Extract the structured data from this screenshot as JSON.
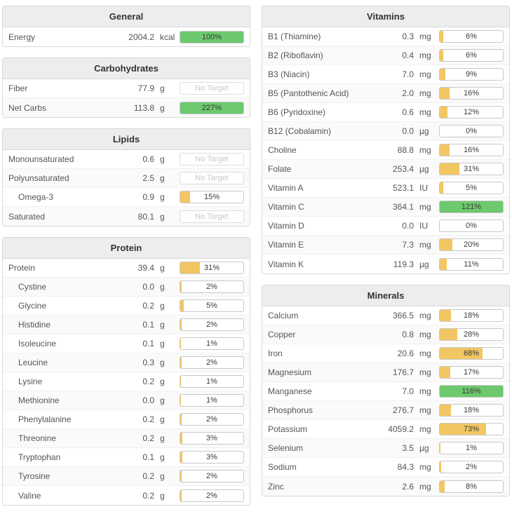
{
  "labels": {
    "no_target": "No Target"
  },
  "colors": {
    "fill_yellow": "#F2C662",
    "fill_green": "#6DC96E",
    "header_bg": "#EDEDED",
    "border": "#D9D9D9"
  },
  "panels": [
    {
      "title": "General",
      "column": "left",
      "rows": [
        {
          "label": "Energy",
          "value": "2004.2",
          "unit": "kcal",
          "percent": 100
        }
      ]
    },
    {
      "title": "Carbohydrates",
      "column": "left",
      "rows": [
        {
          "label": "Fiber",
          "value": "77.9",
          "unit": "g",
          "no_target": true
        },
        {
          "label": "Net Carbs",
          "value": "113.8",
          "unit": "g",
          "percent": 227
        }
      ]
    },
    {
      "title": "Lipids",
      "column": "left",
      "rows": [
        {
          "label": "Monounsaturated",
          "value": "0.6",
          "unit": "g",
          "no_target": true
        },
        {
          "label": "Polyunsaturated",
          "value": "2.5",
          "unit": "g",
          "no_target": true
        },
        {
          "label": "Omega-3",
          "value": "0.9",
          "unit": "g",
          "percent": 15,
          "indent": true
        },
        {
          "label": "Saturated",
          "value": "80.1",
          "unit": "g",
          "no_target": true
        }
      ]
    },
    {
      "title": "Protein",
      "column": "left",
      "rows": [
        {
          "label": "Protein",
          "value": "39.4",
          "unit": "g",
          "percent": 31
        },
        {
          "label": "Cystine",
          "value": "0.0",
          "unit": "g",
          "percent": 2,
          "indent": true
        },
        {
          "label": "Glycine",
          "value": "0.2",
          "unit": "g",
          "percent": 5,
          "indent": true
        },
        {
          "label": "Histidine",
          "value": "0.1",
          "unit": "g",
          "percent": 2,
          "indent": true
        },
        {
          "label": "Isoleucine",
          "value": "0.1",
          "unit": "g",
          "percent": 1,
          "indent": true
        },
        {
          "label": "Leucine",
          "value": "0.3",
          "unit": "g",
          "percent": 2,
          "indent": true
        },
        {
          "label": "Lysine",
          "value": "0.2",
          "unit": "g",
          "percent": 1,
          "indent": true
        },
        {
          "label": "Methionine",
          "value": "0.0",
          "unit": "g",
          "percent": 1,
          "indent": true
        },
        {
          "label": "Phenylalanine",
          "value": "0.2",
          "unit": "g",
          "percent": 2,
          "indent": true
        },
        {
          "label": "Threonine",
          "value": "0.2",
          "unit": "g",
          "percent": 3,
          "indent": true
        },
        {
          "label": "Tryptophan",
          "value": "0.1",
          "unit": "g",
          "percent": 3,
          "indent": true
        },
        {
          "label": "Tyrosine",
          "value": "0.2",
          "unit": "g",
          "percent": 2,
          "indent": true
        },
        {
          "label": "Valine",
          "value": "0.2",
          "unit": "g",
          "percent": 2,
          "indent": true
        }
      ]
    },
    {
      "title": "Vitamins",
      "column": "right",
      "rows": [
        {
          "label": "B1 (Thiamine)",
          "value": "0.3",
          "unit": "mg",
          "percent": 6
        },
        {
          "label": "B2 (Riboflavin)",
          "value": "0.4",
          "unit": "mg",
          "percent": 6
        },
        {
          "label": "B3 (Niacin)",
          "value": "7.0",
          "unit": "mg",
          "percent": 9
        },
        {
          "label": "B5 (Pantothenic Acid)",
          "value": "2.0",
          "unit": "mg",
          "percent": 16
        },
        {
          "label": "B6 (Pyridoxine)",
          "value": "0.6",
          "unit": "mg",
          "percent": 12
        },
        {
          "label": "B12 (Cobalamin)",
          "value": "0.0",
          "unit": "µg",
          "percent": 0
        },
        {
          "label": "Choline",
          "value": "88.8",
          "unit": "mg",
          "percent": 16
        },
        {
          "label": "Folate",
          "value": "253.4",
          "unit": "µg",
          "percent": 31
        },
        {
          "label": "Vitamin A",
          "value": "523.1",
          "unit": "IU",
          "percent": 5
        },
        {
          "label": "Vitamin C",
          "value": "364.1",
          "unit": "mg",
          "percent": 121
        },
        {
          "label": "Vitamin D",
          "value": "0.0",
          "unit": "IU",
          "percent": 0
        },
        {
          "label": "Vitamin E",
          "value": "7.3",
          "unit": "mg",
          "percent": 20
        },
        {
          "label": "Vitamin K",
          "value": "119.3",
          "unit": "µg",
          "percent": 11
        }
      ]
    },
    {
      "title": "Minerals",
      "column": "right",
      "rows": [
        {
          "label": "Calcium",
          "value": "366.5",
          "unit": "mg",
          "percent": 18
        },
        {
          "label": "Copper",
          "value": "0.8",
          "unit": "mg",
          "percent": 28
        },
        {
          "label": "Iron",
          "value": "20.6",
          "unit": "mg",
          "percent": 68
        },
        {
          "label": "Magnesium",
          "value": "176.7",
          "unit": "mg",
          "percent": 17
        },
        {
          "label": "Manganese",
          "value": "7.0",
          "unit": "mg",
          "percent": 116
        },
        {
          "label": "Phosphorus",
          "value": "276.7",
          "unit": "mg",
          "percent": 18
        },
        {
          "label": "Potassium",
          "value": "4059.2",
          "unit": "mg",
          "percent": 73
        },
        {
          "label": "Selenium",
          "value": "3.5",
          "unit": "µg",
          "percent": 1
        },
        {
          "label": "Sodium",
          "value": "84.3",
          "unit": "mg",
          "percent": 2
        },
        {
          "label": "Zinc",
          "value": "2.6",
          "unit": "mg",
          "percent": 8
        }
      ]
    }
  ]
}
